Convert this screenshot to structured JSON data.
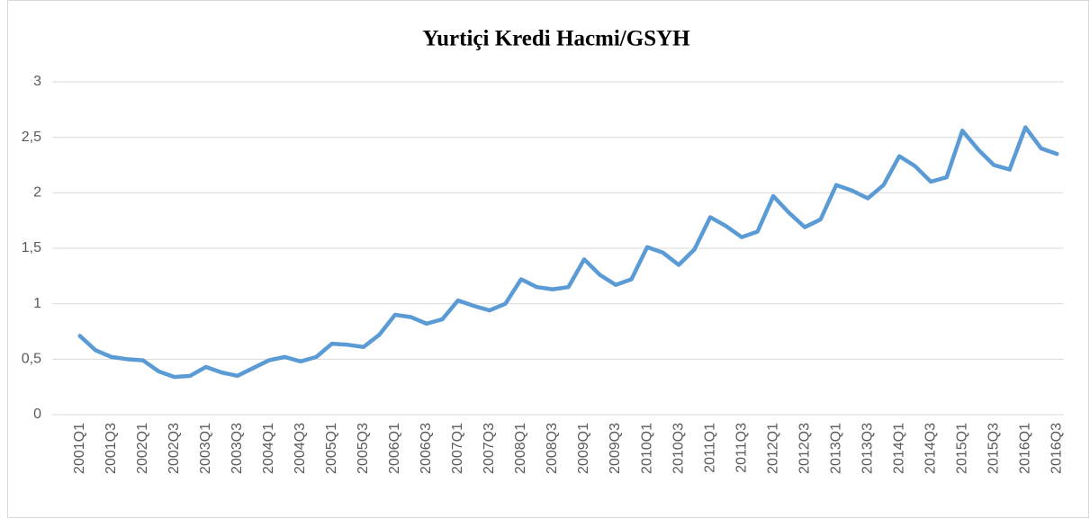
{
  "chart_data": {
    "type": "line",
    "title": "Yurtiçi Kredi Hacmi/GSYH",
    "categories": [
      "2001Q1",
      null,
      "2001Q3",
      null,
      "2002Q1",
      null,
      "2002Q3",
      null,
      "2003Q1",
      null,
      "2003Q3",
      null,
      "2004Q1",
      null,
      "2004Q3",
      null,
      "2005Q1",
      null,
      "2005Q3",
      null,
      "2006Q1",
      null,
      "2006Q3",
      null,
      "2007Q1",
      null,
      "2007Q3",
      null,
      "2008Q1",
      null,
      "2008Q3",
      null,
      "2009Q1",
      null,
      "2009Q3",
      null,
      "2010Q1",
      null,
      "2010Q3",
      null,
      "2011Q1",
      null,
      "2011Q3",
      null,
      "2012Q1",
      null,
      "2012Q3",
      null,
      "2013Q1",
      null,
      "2013Q3",
      null,
      "2014Q1",
      null,
      "2014Q3",
      null,
      "2015Q1",
      null,
      "2015Q3",
      null,
      "2016Q1",
      null,
      "2016Q3"
    ],
    "values": [
      0.71,
      0.58,
      0.52,
      0.5,
      0.49,
      0.39,
      0.34,
      0.35,
      0.43,
      0.38,
      0.35,
      0.42,
      0.49,
      0.52,
      0.48,
      0.52,
      0.64,
      0.63,
      0.61,
      0.72,
      0.9,
      0.88,
      0.82,
      0.86,
      1.03,
      0.98,
      0.94,
      1.0,
      1.22,
      1.15,
      1.13,
      1.15,
      1.4,
      1.26,
      1.17,
      1.22,
      1.51,
      1.46,
      1.35,
      1.49,
      1.78,
      1.7,
      1.6,
      1.65,
      1.97,
      1.82,
      1.69,
      1.76,
      2.07,
      2.02,
      1.95,
      2.07,
      2.33,
      2.24,
      2.1,
      2.14,
      2.56,
      2.39,
      2.25,
      2.21,
      2.59,
      2.4,
      2.35
    ],
    "color": "#5b9bd5",
    "ylim": [
      0,
      3
    ],
    "yticks": [
      0,
      {
        "value": 0.5,
        "label": "0,5"
      },
      1,
      {
        "value": 1.5,
        "label": "1,5"
      },
      2,
      {
        "value": 2.5,
        "label": "2,5"
      },
      3
    ],
    "grid": true
  }
}
